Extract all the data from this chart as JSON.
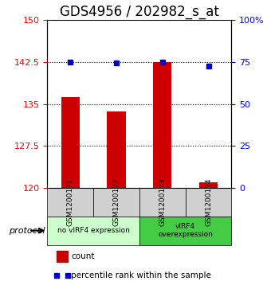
{
  "title": "GDS4956 / 202982_s_at",
  "samples": [
    "GSM1200171",
    "GSM1200172",
    "GSM1200173",
    "GSM1200174"
  ],
  "bar_values": [
    136.2,
    133.7,
    142.5,
    121.0
  ],
  "bar_bottom": 120.0,
  "percentile_values": [
    142.5,
    142.3,
    142.5,
    141.8
  ],
  "ylim_left": [
    120,
    150
  ],
  "ylim_right": [
    0,
    100
  ],
  "yticks_left": [
    120,
    127.5,
    135,
    142.5,
    150
  ],
  "yticks_right": [
    0,
    25,
    50,
    75,
    100
  ],
  "ytick_labels_left": [
    "120",
    "127.5",
    "135",
    "142.5",
    "150"
  ],
  "ytick_labels_right": [
    "0",
    "25",
    "50",
    "75",
    "100%"
  ],
  "bar_color": "#cc0000",
  "dot_color": "#0000cc",
  "protocol_groups": [
    {
      "label": "no vIRF4 expression",
      "start": 0,
      "end": 2,
      "color": "#ccffcc"
    },
    {
      "label": "vIRF4\noverexpression",
      "start": 2,
      "end": 4,
      "color": "#44cc44"
    }
  ],
  "protocol_label": "protocol",
  "legend_count_label": "count",
  "legend_pct_label": "percentile rank within the sample",
  "grid_color": "#000000",
  "background_color": "#ffffff",
  "plot_bg_color": "#ffffff",
  "bar_width": 0.4,
  "title_fontsize": 12,
  "tick_fontsize": 8,
  "label_fontsize": 8
}
